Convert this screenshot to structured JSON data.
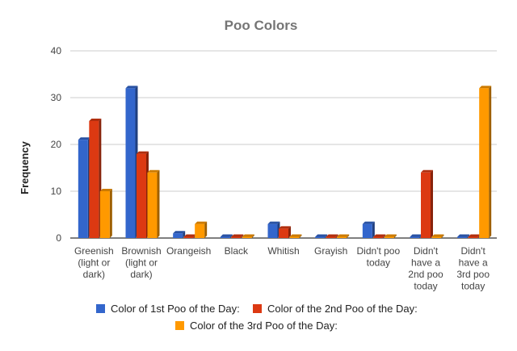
{
  "chart_data": {
    "type": "bar",
    "title": "Poo Colors",
    "xlabel": "",
    "ylabel": "Frequency",
    "ylim": [
      0,
      40
    ],
    "yticks": [
      0,
      10,
      20,
      30,
      40
    ],
    "grid": true,
    "legend_position": "bottom",
    "categories": [
      [
        "Greenish",
        "(light or",
        "dark)"
      ],
      [
        "Brownish",
        "(light or",
        "dark)"
      ],
      [
        "Orangeish"
      ],
      [
        "Black"
      ],
      [
        "Whitish"
      ],
      [
        "Grayish"
      ],
      [
        "Didn't poo",
        "today"
      ],
      [
        "Didn't",
        "have a",
        "2nd poo",
        "today"
      ],
      [
        "Didn't",
        "have a",
        "3rd poo",
        "today"
      ]
    ],
    "series": [
      {
        "name": "Color of 1st Poo of the Day:",
        "color": "#3366cc",
        "values": [
          21,
          32,
          1,
          0,
          3,
          0,
          3,
          0,
          0
        ]
      },
      {
        "name": "Color of the 2nd Poo of the Day:",
        "color": "#dc3912",
        "values": [
          25,
          18,
          0,
          0,
          2,
          0,
          0,
          14,
          0
        ]
      },
      {
        "name": "Color of the 3rd Poo of the Day:",
        "color": "#ff9900",
        "values": [
          10,
          14,
          3,
          0,
          0,
          0,
          0,
          0,
          32
        ]
      }
    ]
  }
}
